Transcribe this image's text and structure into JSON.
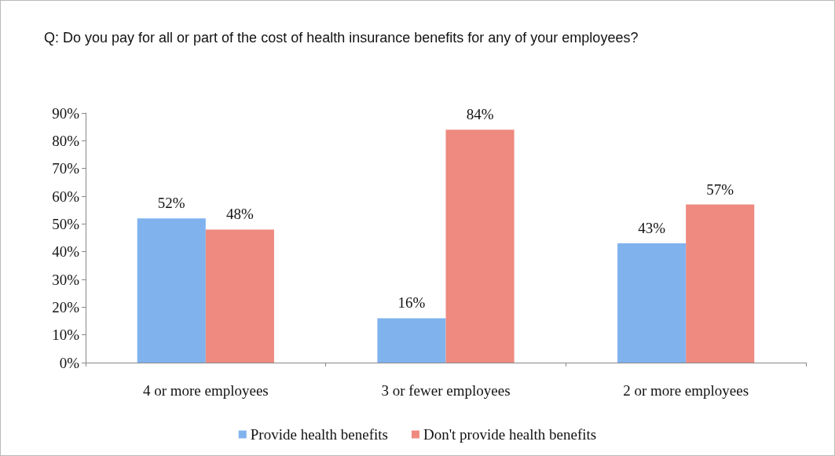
{
  "chart_data": {
    "type": "bar",
    "title": "Q: Do you pay for all or part of the cost of health insurance benefits for any of your employees?",
    "categories": [
      "4 or more employees",
      "3 or fewer employees",
      "2 or more employees"
    ],
    "series": [
      {
        "name": "Provide health benefits",
        "color": "#80b3ee",
        "values": [
          52,
          16,
          43
        ],
        "value_labels": [
          "52%",
          "16%",
          "43%"
        ]
      },
      {
        "name": "Don't provide health benefits",
        "color": "#ee8a80",
        "values": [
          48,
          84,
          57
        ],
        "value_labels": [
          "48%",
          "84%",
          "57%"
        ]
      }
    ],
    "ylim": [
      0,
      90
    ],
    "yticks": [
      {
        "value": 0,
        "label": "0%"
      },
      {
        "value": 10,
        "label": "10%"
      },
      {
        "value": 20,
        "label": "20%"
      },
      {
        "value": 30,
        "label": "30%"
      },
      {
        "value": 40,
        "label": "40%"
      },
      {
        "value": 50,
        "label": "50%"
      },
      {
        "value": 60,
        "label": "60%"
      },
      {
        "value": 70,
        "label": "70%"
      },
      {
        "value": 80,
        "label": "80%"
      },
      {
        "value": 90,
        "label": "90%"
      }
    ],
    "grid": false,
    "legend": "bottom"
  }
}
